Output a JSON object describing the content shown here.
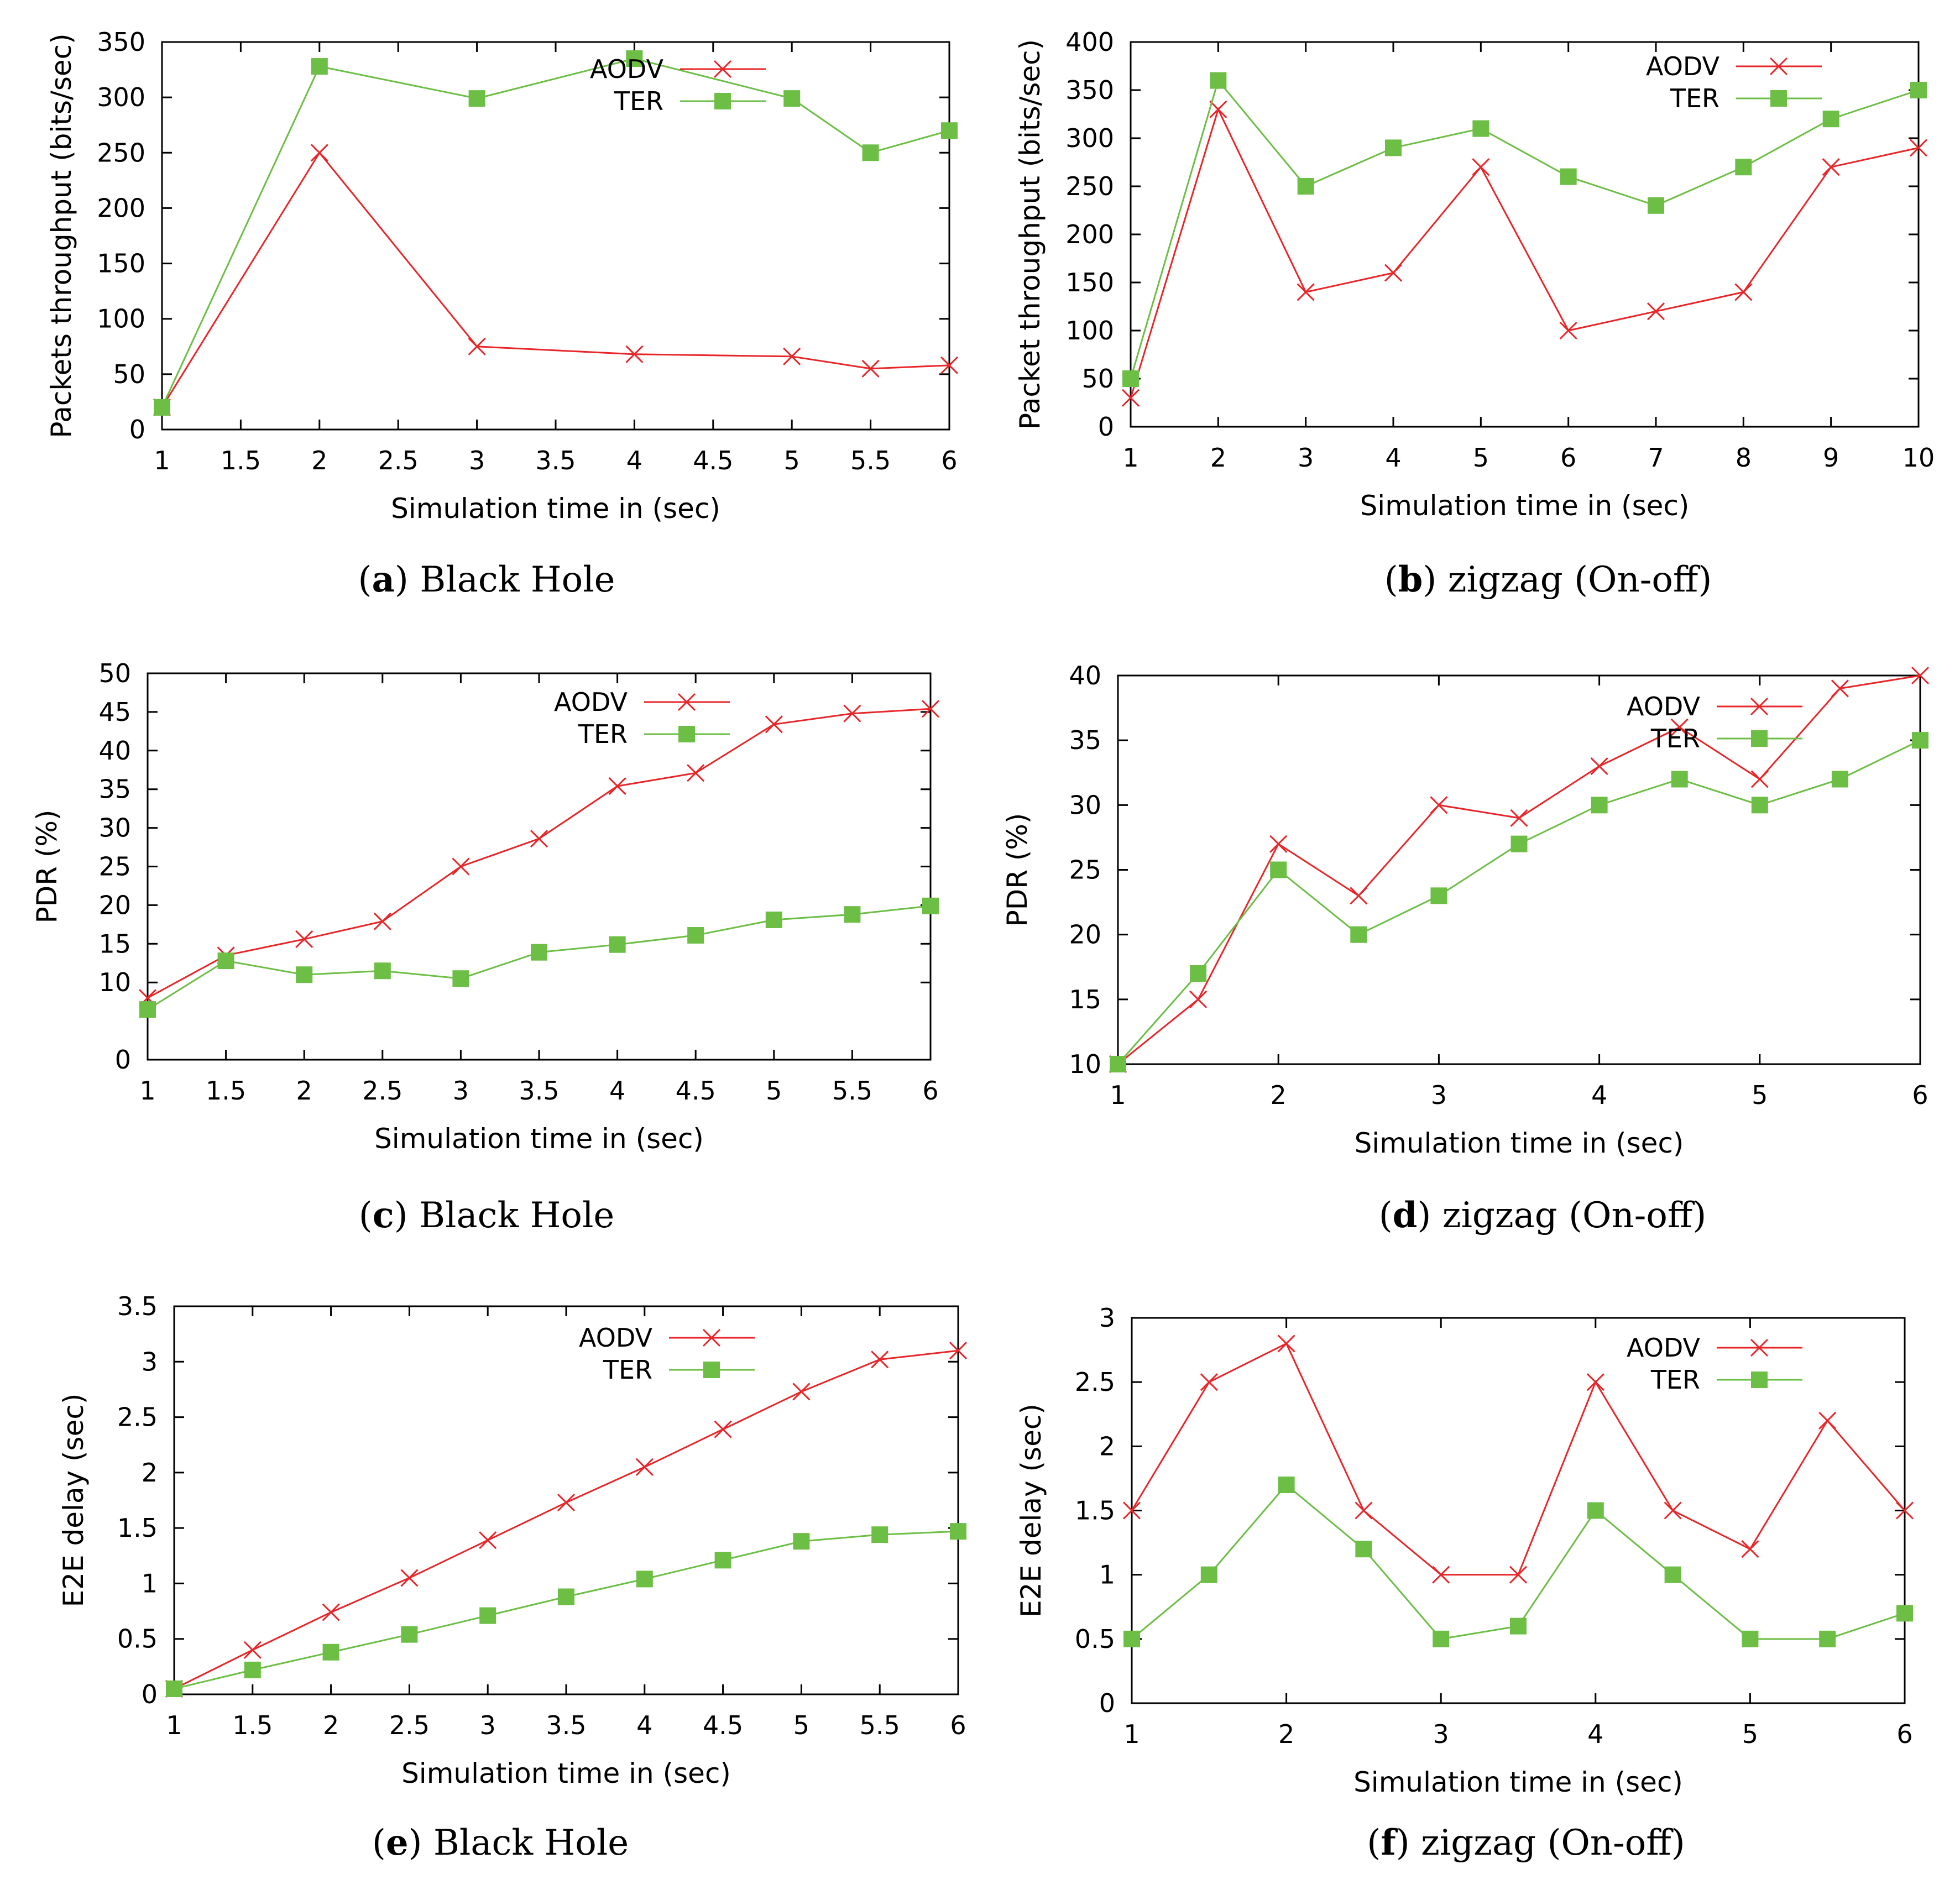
{
  "colors": {
    "aodv": "#e8262a",
    "ter": "#6cbe45",
    "axis": "#000000"
  },
  "chart_data": [
    {
      "type": "line",
      "panel_letter": "a",
      "caption": "Black Hole",
      "xlabel": "Simulation time in (sec)",
      "ylabel": "Packets throughput (bits/sec)",
      "xlim": [
        1,
        6
      ],
      "ylim": [
        0,
        350
      ],
      "xticks": [
        1,
        1.5,
        2,
        2.5,
        3,
        3.5,
        4,
        4.5,
        5,
        5.5,
        6
      ],
      "yticks": [
        0,
        50,
        100,
        150,
        200,
        250,
        300,
        350
      ],
      "legend_position": "top-right",
      "series": [
        {
          "name": "AODV",
          "marker": "x",
          "x": [
            1,
            2,
            3,
            4,
            5,
            5.5,
            6
          ],
          "values": [
            20,
            250,
            75,
            68,
            66,
            55,
            58
          ]
        },
        {
          "name": "TER",
          "marker": "square",
          "x": [
            1,
            2,
            3,
            4,
            5,
            5.5,
            6
          ],
          "values": [
            20,
            328,
            299,
            335,
            299,
            250,
            270
          ]
        }
      ]
    },
    {
      "type": "line",
      "panel_letter": "b",
      "caption": "zigzag (On-off)",
      "xlabel": "Simulation time in (sec)",
      "ylabel": "Packet throughput (bits/sec)",
      "xlim": [
        1,
        10
      ],
      "ylim": [
        0,
        400
      ],
      "xticks": [
        1,
        2,
        3,
        4,
        5,
        6,
        7,
        8,
        9,
        10
      ],
      "yticks": [
        0,
        50,
        100,
        150,
        200,
        250,
        300,
        350,
        400
      ],
      "legend_position": "top-right",
      "series": [
        {
          "name": "AODV",
          "marker": "x",
          "x": [
            1,
            2,
            3,
            4,
            5,
            6,
            7,
            8,
            9,
            10
          ],
          "values": [
            30,
            330,
            140,
            160,
            270,
            100,
            120,
            140,
            270,
            290
          ]
        },
        {
          "name": "TER",
          "marker": "square",
          "x": [
            1,
            2,
            3,
            4,
            5,
            6,
            7,
            8,
            9,
            10
          ],
          "values": [
            50,
            360,
            250,
            290,
            310,
            260,
            230,
            270,
            320,
            350
          ]
        }
      ]
    },
    {
      "type": "line",
      "panel_letter": "c",
      "caption": "Black Hole",
      "xlabel": "Simulation time in (sec)",
      "ylabel": "PDR (%)",
      "xlim": [
        1,
        6
      ],
      "ylim": [
        0,
        50
      ],
      "xticks": [
        1,
        1.5,
        2,
        2.5,
        3,
        3.5,
        4,
        4.5,
        5,
        5.5,
        6
      ],
      "yticks": [
        0,
        10,
        15,
        20,
        25,
        30,
        35,
        40,
        45,
        50
      ],
      "legend_position": "top-right",
      "series": [
        {
          "name": "AODV",
          "marker": "x",
          "x": [
            1,
            1.5,
            2,
            2.5,
            3,
            3.5,
            4,
            4.5,
            5,
            5.5,
            6
          ],
          "values": [
            8,
            13.5,
            15.6,
            17.9,
            25,
            28.6,
            35.4,
            37.1,
            43.4,
            44.8,
            45.4
          ]
        },
        {
          "name": "TER",
          "marker": "square",
          "x": [
            1,
            1.5,
            2,
            2.5,
            3,
            3.5,
            4,
            4.5,
            5,
            5.5,
            6
          ],
          "values": [
            6.5,
            12.8,
            11,
            11.5,
            10.5,
            13.9,
            14.9,
            16.1,
            18.1,
            18.8,
            19.9
          ]
        }
      ]
    },
    {
      "type": "line",
      "panel_letter": "d",
      "caption": "zigzag (On-off)",
      "xlabel": "Simulation time in (sec)",
      "ylabel": "PDR (%)",
      "xlim": [
        1,
        6
      ],
      "ylim": [
        10,
        40
      ],
      "xticks": [
        1,
        2,
        3,
        4,
        5,
        6
      ],
      "yticks": [
        10,
        15,
        20,
        25,
        30,
        35,
        40
      ],
      "legend_position": "top-right",
      "series": [
        {
          "name": "AODV",
          "marker": "x",
          "x": [
            1,
            1.5,
            2,
            2.5,
            3,
            3.5,
            4,
            4.5,
            5,
            5.5,
            6
          ],
          "values": [
            10,
            15,
            27,
            23,
            30,
            29,
            33,
            36,
            32,
            39,
            40
          ]
        },
        {
          "name": "TER",
          "marker": "square",
          "x": [
            1,
            1.5,
            2,
            2.5,
            3,
            3.5,
            4,
            4.5,
            5,
            5.5,
            6
          ],
          "values": [
            10,
            17,
            25,
            20,
            23,
            27,
            30,
            32,
            30,
            32,
            35
          ]
        }
      ]
    },
    {
      "type": "line",
      "panel_letter": "e",
      "caption": "Black Hole",
      "xlabel": "Simulation time in (sec)",
      "ylabel": "E2E delay (sec)",
      "xlim": [
        1,
        6
      ],
      "ylim": [
        0,
        3.5
      ],
      "xticks": [
        1,
        1.5,
        2,
        2.5,
        3,
        3.5,
        4,
        4.5,
        5,
        5.5,
        6
      ],
      "yticks": [
        0,
        0.5,
        1,
        1.5,
        2,
        2.5,
        3,
        3.5
      ],
      "legend_position": "top-right",
      "series": [
        {
          "name": "AODV",
          "marker": "x",
          "x": [
            1,
            1.5,
            2,
            2.5,
            3,
            3.5,
            4,
            4.5,
            5,
            5.5,
            6
          ],
          "values": [
            0.05,
            0.4,
            0.74,
            1.05,
            1.39,
            1.73,
            2.05,
            2.39,
            2.73,
            3.02,
            3.1
          ]
        },
        {
          "name": "TER",
          "marker": "square",
          "x": [
            1,
            1.5,
            2,
            2.5,
            3,
            3.5,
            4,
            4.5,
            5,
            5.5,
            6
          ],
          "values": [
            0.05,
            0.22,
            0.38,
            0.54,
            0.71,
            0.88,
            1.04,
            1.21,
            1.38,
            1.44,
            1.47
          ]
        }
      ]
    },
    {
      "type": "line",
      "panel_letter": "f",
      "caption": "zigzag (On-off)",
      "xlabel": "Simulation time in (sec)",
      "ylabel": "E2E delay (sec)",
      "xlim": [
        1,
        6
      ],
      "ylim": [
        0,
        3
      ],
      "xticks": [
        1,
        2,
        3,
        4,
        5,
        6
      ],
      "yticks": [
        0,
        0.5,
        1,
        1.5,
        2,
        2.5,
        3
      ],
      "legend_position": "top-right",
      "series": [
        {
          "name": "AODV",
          "marker": "x",
          "x": [
            1,
            1.5,
            2,
            2.5,
            3,
            3.5,
            4,
            4.5,
            5,
            5.5,
            6
          ],
          "values": [
            1.5,
            2.5,
            2.8,
            1.5,
            1,
            1,
            2.5,
            1.5,
            1.2,
            2.2,
            1.5
          ]
        },
        {
          "name": "TER",
          "marker": "square",
          "x": [
            1,
            1.5,
            2,
            2.5,
            3,
            3.5,
            4,
            4.5,
            5,
            5.5,
            6
          ],
          "values": [
            0.5,
            1,
            1.7,
            1.2,
            0.5,
            0.6,
            1.5,
            1,
            0.5,
            0.5,
            0.7
          ]
        }
      ]
    }
  ]
}
